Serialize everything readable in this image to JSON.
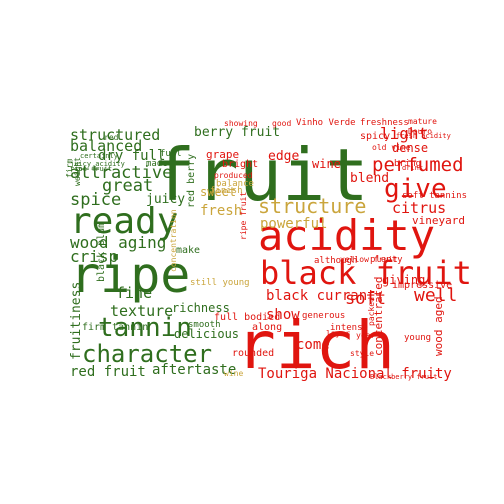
{
  "colors": {
    "green": "#2f6e1e",
    "red": "#e0150f",
    "gold": "#caa53c"
  },
  "words": [
    {
      "text": "fruit",
      "color": "green"
    },
    {
      "text": "acidity",
      "color": "red"
    },
    {
      "text": "rich",
      "color": "red"
    },
    {
      "text": "ripe",
      "color": "green"
    },
    {
      "text": "ready",
      "color": "green"
    },
    {
      "text": "black fruit",
      "color": "red"
    },
    {
      "text": "tannin",
      "color": "green"
    },
    {
      "text": "character",
      "color": "green"
    },
    {
      "text": "structure",
      "color": "gold"
    },
    {
      "text": "give",
      "color": "red"
    },
    {
      "text": "structured",
      "color": "green"
    },
    {
      "text": "balanced",
      "color": "green"
    },
    {
      "text": "attractive",
      "color": "green"
    },
    {
      "text": "great",
      "color": "green"
    },
    {
      "text": "spice",
      "color": "green"
    },
    {
      "text": "wood aging",
      "color": "green"
    },
    {
      "text": "crisp",
      "color": "green"
    },
    {
      "text": "berry fruit",
      "color": "green"
    },
    {
      "text": "light",
      "color": "red"
    },
    {
      "text": "perfumed",
      "color": "red"
    },
    {
      "text": "citrus",
      "color": "red"
    },
    {
      "text": "well",
      "color": "red"
    },
    {
      "text": "black currant",
      "color": "red"
    },
    {
      "text": "soft",
      "color": "red"
    },
    {
      "text": "show",
      "color": "red"
    },
    {
      "text": "come",
      "color": "red"
    },
    {
      "text": "Touriga Nacional fruity",
      "color": "red"
    },
    {
      "text": "aftertaste",
      "color": "green"
    },
    {
      "text": "red fruit",
      "color": "green"
    },
    {
      "text": "fruitiness",
      "color": "green"
    },
    {
      "text": "texture",
      "color": "green"
    },
    {
      "text": "fine",
      "color": "green"
    },
    {
      "text": "dry full",
      "color": "green"
    },
    {
      "text": "juicy",
      "color": "green"
    },
    {
      "text": "sweet",
      "color": "gold"
    },
    {
      "text": "fresh",
      "color": "gold"
    },
    {
      "text": "powerful",
      "color": "gold"
    },
    {
      "text": "edge",
      "color": "red"
    },
    {
      "text": "wine",
      "color": "red"
    },
    {
      "text": "blend",
      "color": "red"
    },
    {
      "text": "dense",
      "color": "red"
    },
    {
      "text": "giving",
      "color": "red"
    },
    {
      "text": "concentrated",
      "color": "red"
    },
    {
      "text": "wood aged",
      "color": "red"
    },
    {
      "text": "richness",
      "color": "green"
    },
    {
      "text": "delicious",
      "color": "green"
    },
    {
      "text": "firm tannin",
      "color": "green"
    },
    {
      "text": "spicy",
      "color": "red"
    },
    {
      "text": "vineyard",
      "color": "red"
    },
    {
      "text": "still young",
      "color": "gold"
    },
    {
      "text": "make",
      "color": "green"
    },
    {
      "text": "grape",
      "color": "red"
    },
    {
      "text": "red berry",
      "color": "green"
    },
    {
      "text": "Vinho Verde",
      "color": "red"
    },
    {
      "text": "freshness",
      "color": "red"
    },
    {
      "text": "along",
      "color": "red"
    },
    {
      "text": "rounded",
      "color": "red"
    },
    {
      "text": "full bodied",
      "color": "red"
    },
    {
      "text": "generous",
      "color": "red"
    },
    {
      "text": "intense",
      "color": "red"
    },
    {
      "text": "impressive",
      "color": "red"
    },
    {
      "text": "although",
      "color": "red"
    },
    {
      "text": "balance",
      "color": "gold"
    },
    {
      "text": "soft tannins",
      "color": "red"
    },
    {
      "text": "smooth",
      "color": "green"
    },
    {
      "text": "plenty",
      "color": "red"
    },
    {
      "text": "young",
      "color": "red"
    },
    {
      "text": "bright",
      "color": "red"
    },
    {
      "text": "black plum",
      "color": "green"
    },
    {
      "text": "finish",
      "color": "gold"
    },
    {
      "text": "bring",
      "color": "red"
    },
    {
      "text": "layer",
      "color": "red"
    },
    {
      "text": "style",
      "color": "red"
    },
    {
      "text": "year",
      "color": "red"
    },
    {
      "text": "packed",
      "color": "red"
    },
    {
      "text": "yellow fruit",
      "color": "red"
    },
    {
      "text": "made",
      "color": "green"
    },
    {
      "text": "full",
      "color": "green"
    },
    {
      "text": "concentration",
      "color": "gold"
    },
    {
      "text": "produced",
      "color": "red"
    },
    {
      "text": "ripe fruit",
      "color": "red"
    },
    {
      "text": "showing",
      "color": "red"
    },
    {
      "text": "fresh acidity",
      "color": "red"
    },
    {
      "text": "good",
      "color": "red"
    },
    {
      "text": "mature",
      "color": "red"
    },
    {
      "text": "Douro",
      "color": "red"
    },
    {
      "text": "old vine",
      "color": "red"
    },
    {
      "text": "firm",
      "color": "green"
    },
    {
      "text": "weight",
      "color": "green"
    },
    {
      "text": "ripe fruit",
      "color": "green"
    },
    {
      "text": "juicy acidity",
      "color": "green"
    },
    {
      "text": "certainly",
      "color": "green"
    },
    {
      "text": "red",
      "color": "green"
    },
    {
      "text": "wine",
      "color": "gold"
    },
    {
      "text": "drink",
      "color": "red"
    },
    {
      "text": "Blackberry fruit",
      "color": "red"
    }
  ]
}
